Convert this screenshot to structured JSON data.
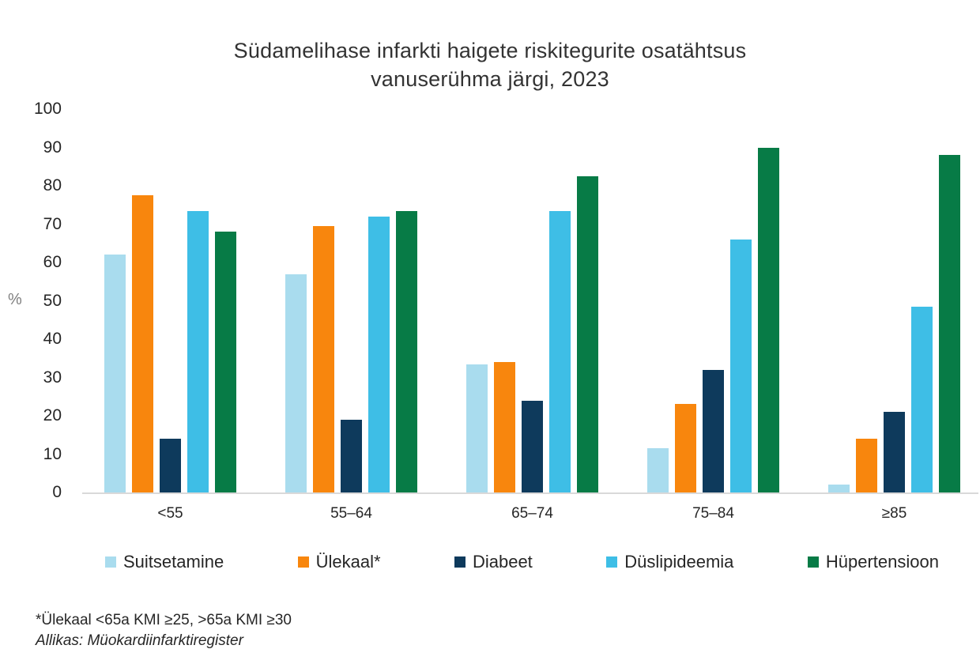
{
  "title_lines": {
    "line1": "Südamelihase infarkti haigete riskitegurite osatähtsus",
    "line2": "vanuserühma järgi, 2023"
  },
  "chart_data": {
    "type": "bar",
    "title": "Südamelihase infarkti haigete riskitegurite osatähtsus vanuserühma järgi, 2023",
    "categories": [
      "<55",
      "55–64",
      "65–74",
      "75–84",
      "≥85"
    ],
    "series": [
      {
        "name": "Suitsetamine",
        "color": "#a9dcee",
        "values": [
          62,
          57,
          33.5,
          11.5,
          2
        ]
      },
      {
        "name": "Ülekaal*",
        "color": "#f8860d",
        "values": [
          77.5,
          69.5,
          34,
          23,
          14
        ]
      },
      {
        "name": "Diabeet",
        "color": "#0e3a5c",
        "values": [
          14,
          19,
          24,
          32,
          21
        ]
      },
      {
        "name": "Düslipideemia",
        "color": "#3ebee6",
        "values": [
          73.5,
          72,
          73.5,
          66,
          48.5
        ]
      },
      {
        "name": "Hüpertensioon",
        "color": "#077b46",
        "values": [
          68,
          73.5,
          82.5,
          90,
          88
        ]
      }
    ],
    "xlabel": "",
    "ylabel": "%",
    "ylim": [
      0,
      100
    ],
    "y_ticks": [
      0,
      10,
      20,
      30,
      40,
      50,
      60,
      70,
      80,
      90,
      100
    ],
    "grid": false,
    "legend_position": "bottom",
    "axis_line_color": "#d9d9d9"
  },
  "footnotes": {
    "line1": "*Ülekaal <65a KMI ≥25, >65a KMI ≥30",
    "line2": "Allikas: Müokardiinfarktiregister"
  }
}
